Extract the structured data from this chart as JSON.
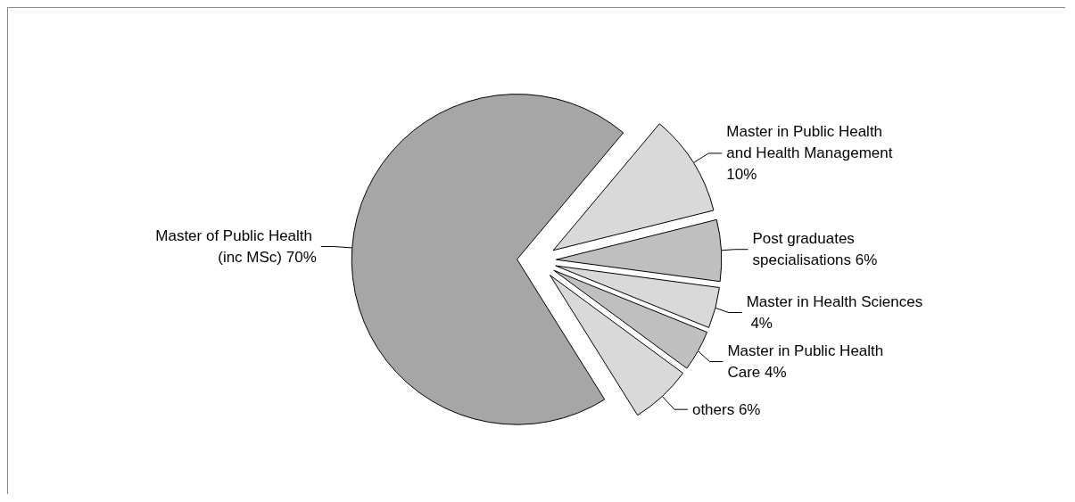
{
  "chart_data": {
    "type": "pie",
    "categories": [
      "Master of Public Health (inc MSc)",
      "Master in Public Health and Health Management",
      "Post graduates specialisations",
      "Master in Health Sciences",
      "Master in Public Health Care",
      "others"
    ],
    "values": [
      70,
      10,
      6,
      4,
      4,
      6
    ],
    "value_labels": [
      "70%",
      "10%",
      "6%",
      "4%",
      "4%",
      "6%"
    ],
    "colors": [
      "#a6a6a6",
      "#d9d9d9",
      "#bfbfbf",
      "#d9d9d9",
      "#bfbfbf",
      "#d9d9d9"
    ],
    "legend": false
  }
}
